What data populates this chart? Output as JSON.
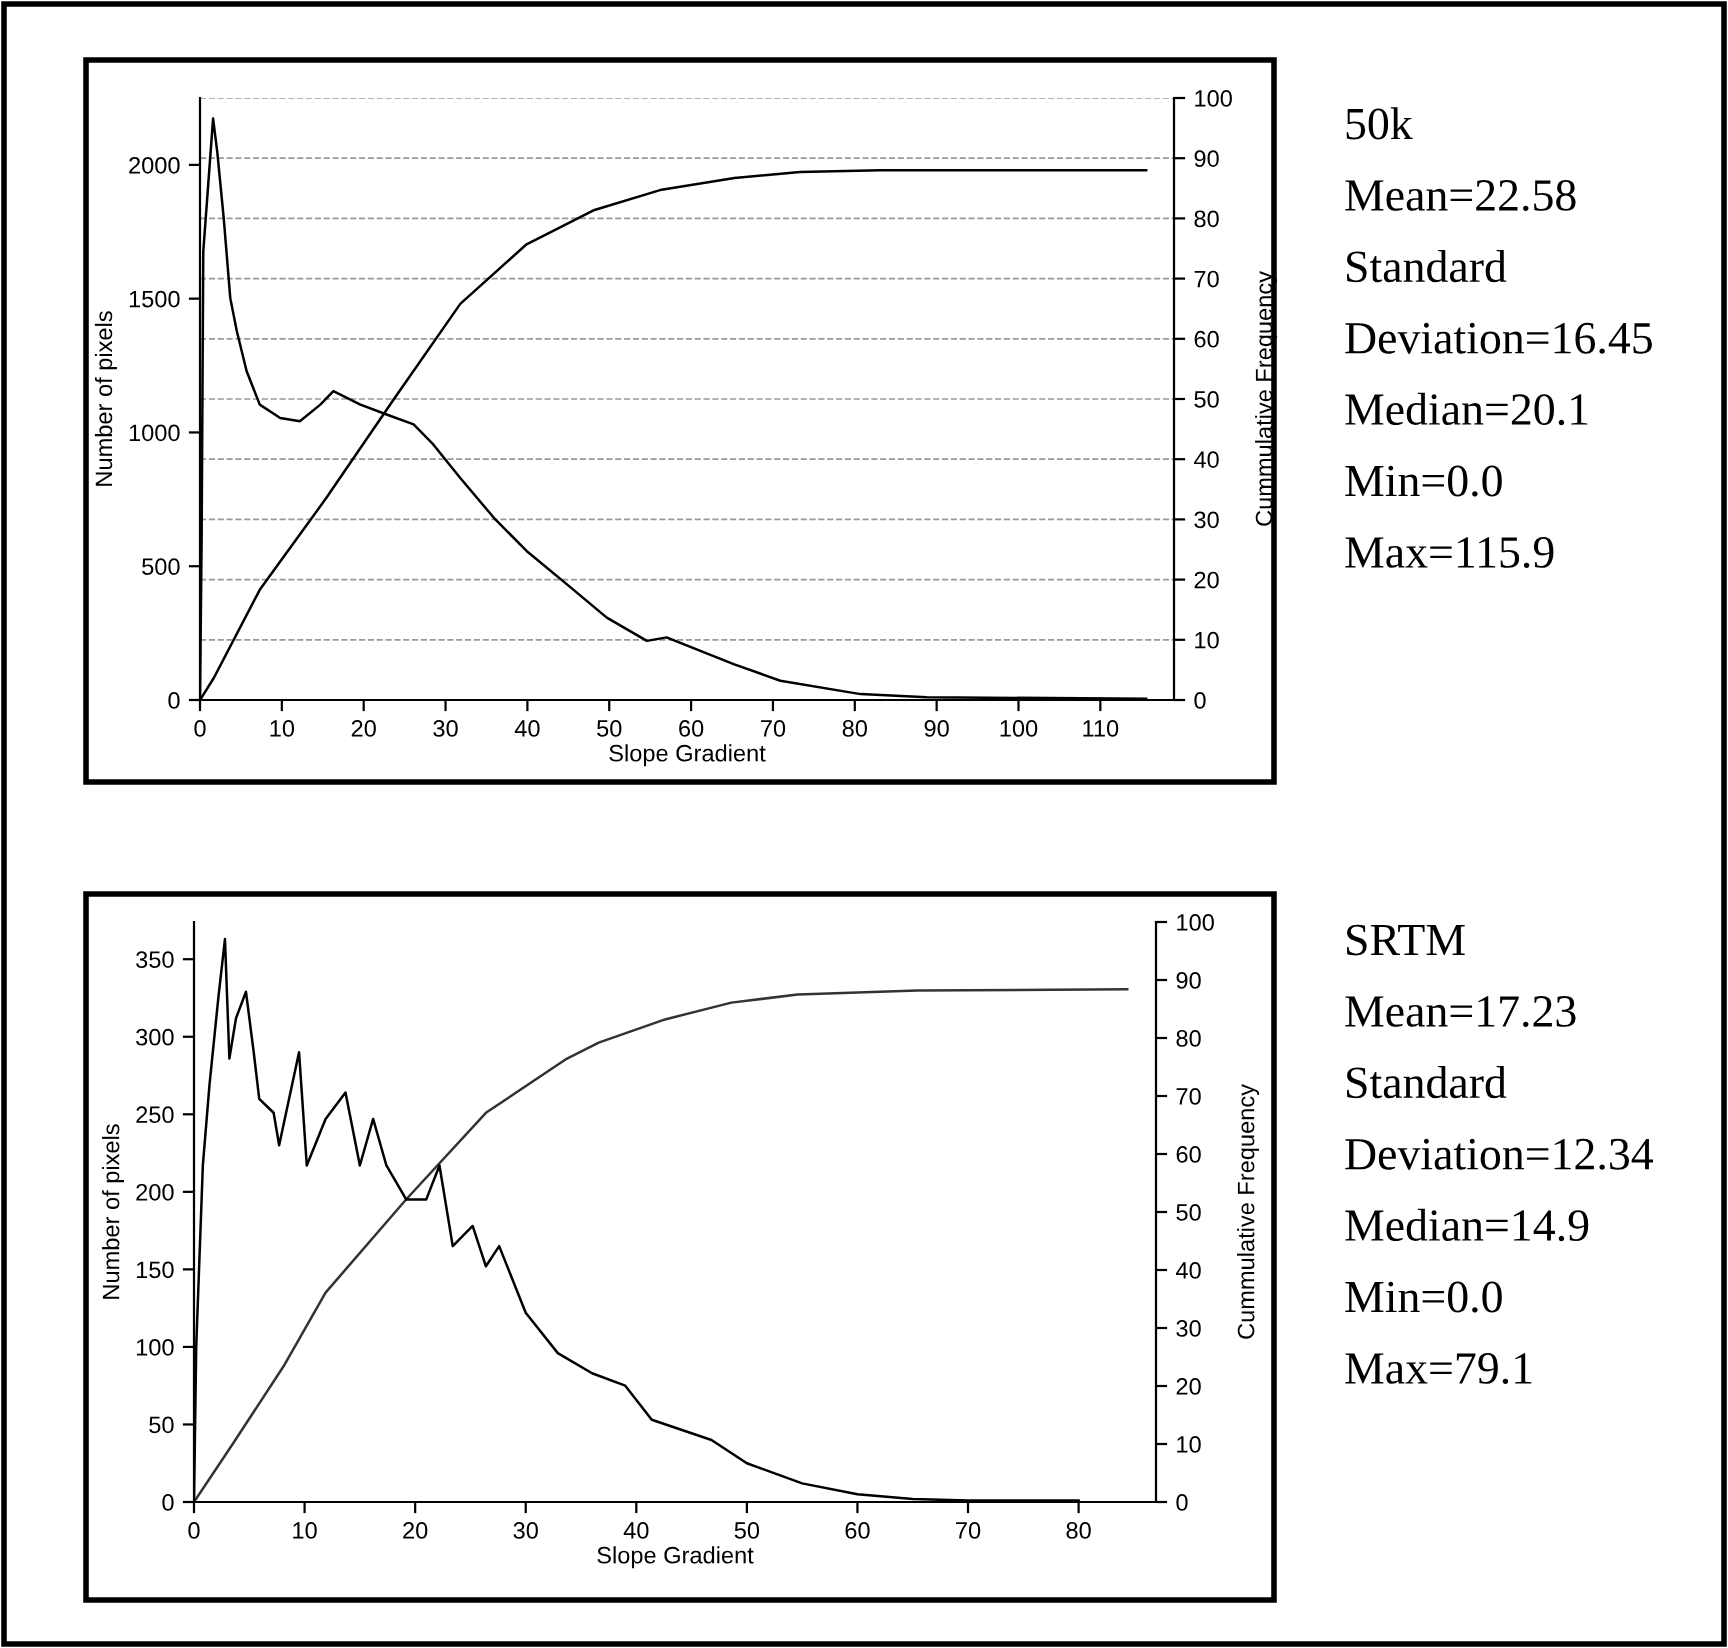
{
  "chart_data": [
    {
      "type": "line",
      "xlabel": "Slope Gradient",
      "ylabel": "Number of pixels",
      "y2label": "Cummulative Frequency",
      "annotations": [
        "50k",
        "Mean=22.58",
        "Standard",
        "Deviation=16.45",
        "Median=20.1",
        "Min=0.0",
        "Max=115.9"
      ],
      "xlim": [
        0,
        119
      ],
      "xticks": [
        0,
        10,
        20,
        30,
        40,
        50,
        60,
        70,
        80,
        90,
        100,
        110
      ],
      "ylim": [
        0,
        2250
      ],
      "yticks": [
        0,
        500,
        1000,
        1500,
        2000
      ],
      "y2lim": [
        0,
        100
      ],
      "y2ticks": [
        0,
        10,
        20,
        30,
        40,
        50,
        60,
        70,
        80,
        90,
        100
      ],
      "grid": "y2",
      "legend": false,
      "marker": "none",
      "line_style": "solid",
      "series": [
        {
          "color": "#000000",
          "x": [
            0,
            0.2,
            0.4,
            1.0,
            1.6,
            2.1,
            2.9,
            3.7,
            4.5,
            5.7,
            7.3,
            9.8,
            12.2,
            14.7,
            16.3,
            19.6,
            22.8,
            26.1,
            28.5,
            31.8,
            35.9,
            39.9,
            44.8,
            49.7,
            54.6,
            57,
            65.2,
            70.9,
            80.7,
            88.8,
            115.6
          ],
          "values": [
            0,
            606,
            1676,
            1925,
            2173,
            2051,
            1800,
            1502,
            1378,
            1229,
            1104,
            1054,
            1042,
            1104,
            1154,
            1104,
            1067,
            1030,
            955,
            830,
            681,
            557,
            433,
            308,
            221,
            234,
            134,
            72,
            22,
            10,
            5
          ]
        },
        {
          "color": "#000000",
          "axis": "y2",
          "x": [
            0,
            1.7,
            7.3,
            15.4,
            23.7,
            31.8,
            39.9,
            48.2,
            56.2,
            65.3,
            73.3,
            83.1,
            115.6
          ],
          "values": [
            0,
            3.7,
            18.3,
            33.5,
            50,
            65.8,
            75.7,
            81.4,
            84.7,
            86.7,
            87.7,
            88,
            88
          ]
        }
      ]
    },
    {
      "type": "line",
      "xlabel": "Slope Gradient",
      "ylabel": "Number of pixels",
      "y2label": "Cummulative Frequency",
      "annotations": [
        "SRTM",
        "Mean=17.23",
        "Standard",
        "Deviation=12.34",
        "Median=14.9",
        "Min=0.0",
        "Max=79.1"
      ],
      "xlim": [
        0,
        87
      ],
      "xticks": [
        0,
        10,
        20,
        30,
        40,
        50,
        60,
        70,
        80
      ],
      "ylim": [
        0,
        374
      ],
      "yticks": [
        0,
        50,
        100,
        150,
        200,
        250,
        300,
        350
      ],
      "y2lim": [
        0,
        100
      ],
      "y2ticks": [
        0,
        10,
        20,
        30,
        40,
        50,
        60,
        70,
        80,
        90,
        100
      ],
      "legend": false,
      "marker": "none",
      "line_style": "solid",
      "series": [
        {
          "color": "#000000",
          "x": [
            0,
            0.2,
            0.8,
            1.4,
            2.2,
            2.8,
            3.2,
            3.8,
            4.7,
            5.4,
            5.9,
            7.2,
            7.7,
            9.5,
            10.2,
            11.9,
            13.7,
            15,
            16.2,
            17.4,
            19.2,
            21,
            22.2,
            23.4,
            25.2,
            26.4,
            27.6,
            30,
            32.9,
            36,
            39,
            41.4,
            46.8,
            50,
            55,
            60,
            65,
            70,
            80
          ],
          "values": [
            0,
            100,
            217,
            269,
            325,
            363,
            286,
            312,
            329,
            290,
            260,
            251,
            230,
            290,
            217,
            247,
            264,
            217,
            247,
            217,
            195,
            195,
            217,
            165,
            178,
            152,
            165,
            122,
            96,
            83,
            75,
            53,
            40,
            25,
            12,
            5,
            2,
            1,
            1
          ]
        },
        {
          "color": "#333333",
          "axis": "y2",
          "x": [
            0,
            3.5,
            8.1,
            11.9,
            19.2,
            26.4,
            33.6,
            36.6,
            42.6,
            48.6,
            54.6,
            65.4,
            84.4
          ],
          "values": [
            0,
            10,
            23.4,
            36.1,
            52.2,
            67.1,
            76.3,
            79.2,
            83.2,
            86.1,
            87.5,
            88.2,
            88.4
          ]
        }
      ]
    }
  ]
}
